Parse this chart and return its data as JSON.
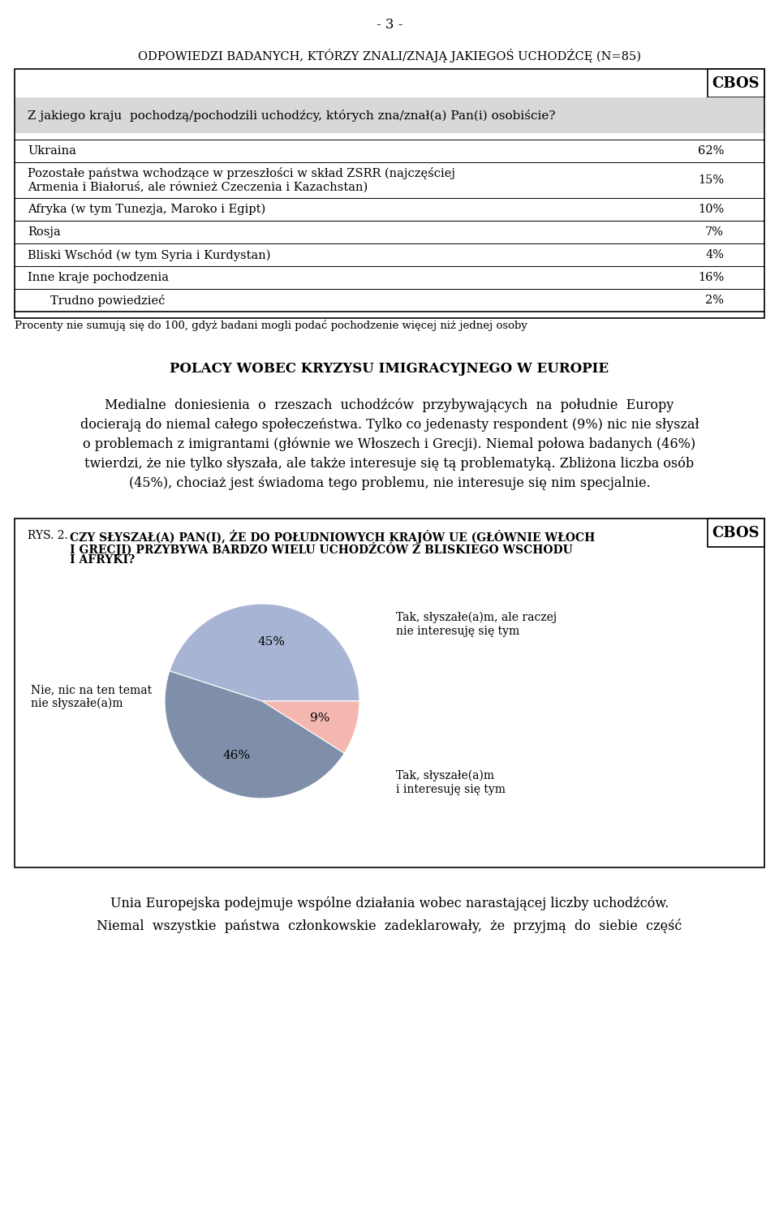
{
  "page_number": "- 3 -",
  "section_header": "ODPOWIEDZI BADANYCH, KTÓRZY ZNALI/ZNAJĄ JAKIEGOŚ UCHODŹCĘ (N=85)",
  "cbos_label": "CBOS",
  "question_text": "Z jakiego kraju  pochodzą/pochodzili uchodźcy, których zna/znał(a) Pan(i) osobiście?",
  "table_rows": [
    {
      "label": "Ukraina",
      "value": "62%",
      "indent": false,
      "multiline": false
    },
    {
      "label": "Pozostałe państwa wchodzące w przeszłości w skład ZSRR (najczęściej",
      "label2": "Armenia i Białoruś, ale również Czeczenia i Kazachstan)",
      "value": "15%",
      "indent": false,
      "multiline": true
    },
    {
      "label": "Afryka (w tym Tunezja, Maroko i Egipt)",
      "value": "10%",
      "indent": false,
      "multiline": false
    },
    {
      "label": "Rosja",
      "value": "7%",
      "indent": false,
      "multiline": false
    },
    {
      "label": "Bliski Wschód (w tym Syria i Kurdystan)",
      "value": "4%",
      "indent": false,
      "multiline": false
    },
    {
      "label": "Inne kraje pochodzenia",
      "value": "16%",
      "indent": false,
      "multiline": false
    },
    {
      "label": "Trudno powiedzieć",
      "value": "2%",
      "indent": true,
      "multiline": false
    }
  ],
  "footnote": "Procenty nie sumują się do 100, gdyż badani mogli podać pochodzenie więcej niż jednej osoby",
  "section2_header": "POLACY WOBEC KRYZYSU IMIGRACYJNEGO W EUROPIE",
  "paragraph1_lines": [
    "Medialne  doniesienia  o  rzeszach  uchodźców  przybywających  na  południe  Europy",
    "docierają do niemal całego społeczeństwa. Tylko co jedenasty respondent (9%) nic nie słyszał",
    "o problemach z imigrantami (głównie we Włoszech i Grecji). Niemal połowa badanych (46%)",
    "twierdzi, że nie tylko słyszała, ale także interesuje się tą problematyką. Zbliżona liczba osób",
    "(45%), chociaż jest świadoma tego problemu, nie interesuje się nim specjalnie."
  ],
  "box2_cbos": "CBOS",
  "box2_title_prefix": "RYS. 2. ",
  "box2_title_lines": [
    "CZY SŁYSZAŁ(A) PAN(I), ŻE DO POŁUDNIOWYCH KRAJÓW UE (GŁÓWNIE WŁOCH",
    "I GRECJI) PRZYBYWA BARDZO WIELU UCHODŹCÓW Z BLISKIEGO WSCHODU",
    "I AFRYKI?"
  ],
  "pie_slices": [
    45,
    9,
    46
  ],
  "pie_labels_inside": [
    "45%",
    "9%",
    "46%"
  ],
  "pie_label_right_top": "Tak, słyszałe(a)m, ale raczej\nnie interesuję się tym",
  "pie_label_left": "Nie, nic na ten temat\nnie słyszałe(a)m",
  "pie_label_right_bottom": "Tak, słyszałe(a)m\ni interesuję się tym",
  "pie_colors": [
    "#a8b4d4",
    "#f4b8b0",
    "#7f8faa"
  ],
  "paragraph2_line1": "Unia Europejska podejmuje wspólne działania wobec narastającej liczby uchodźców.",
  "paragraph2_line2": "Niemal  wszystkie  państwa  członkowskie  zadeklarowały,  że  przyjmą  do  siebie  część",
  "bg_color": "#ffffff",
  "question_bg": "#d8d8d8",
  "border_color": "#000000"
}
